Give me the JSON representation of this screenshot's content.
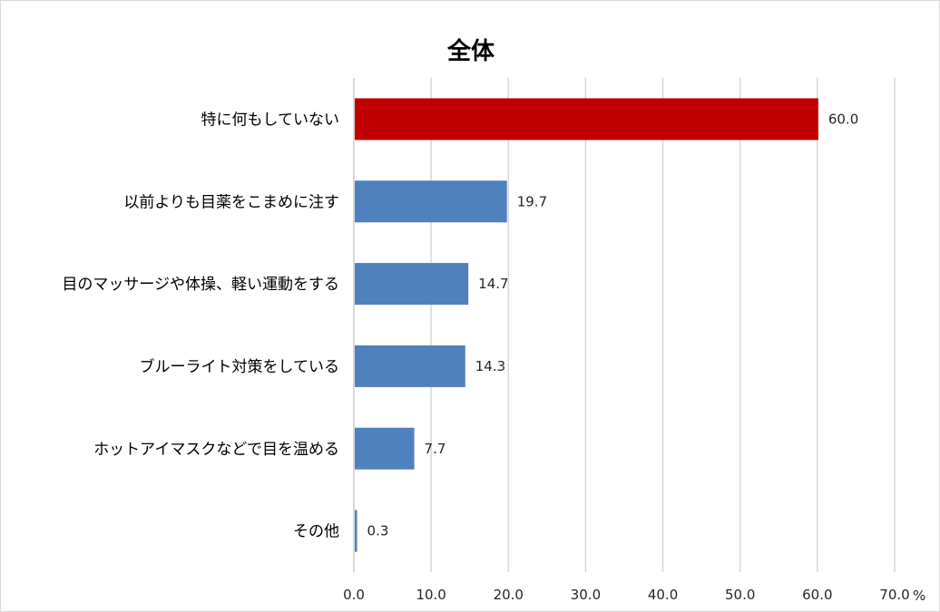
{
  "chart_data": {
    "type": "bar",
    "orientation": "horizontal",
    "title": "全体",
    "categories": [
      "特に何もしていない",
      "以前よりも目薬をこまめに注す",
      "目のマッサージや体操、軽い運動をする",
      "ブルーライト対策をしている",
      "ホットアイマスクなどで目を温める",
      "その他"
    ],
    "values": [
      60.0,
      19.7,
      14.7,
      14.3,
      7.7,
      0.3
    ],
    "value_labels": [
      "60.0",
      "19.7",
      "14.7",
      "14.3",
      "7.7",
      "0.3"
    ],
    "xlim": [
      0,
      70
    ],
    "ticks": [
      0,
      10,
      20,
      30,
      40,
      50,
      60,
      70
    ],
    "tick_labels": [
      "0.0",
      "10.0",
      "20.0",
      "30.0",
      "40.0",
      "50.0",
      "60.0",
      "70.0"
    ],
    "unit": "%",
    "grid": true,
    "colors": {
      "highlight": "#C00000",
      "default": "#4F81BD",
      "grid": "#D9D9D9",
      "axis": "#BFBFBF"
    },
    "highlight_index": 0
  }
}
